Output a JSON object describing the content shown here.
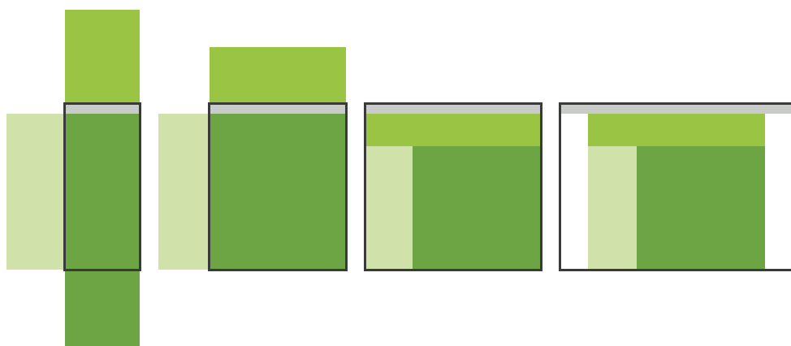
{
  "colors": {
    "light_green": "#d0e1aa",
    "lime_green": "#9ac444",
    "dark_green": "#6da544",
    "frame_border": "#3a3a3a",
    "title_bar": "#c9cbc8",
    "background": "#ffffff"
  },
  "panels": [
    {
      "id": "panel-1",
      "label": ""
    },
    {
      "id": "panel-2",
      "label": ""
    },
    {
      "id": "panel-3",
      "label": ""
    },
    {
      "id": "panel-4",
      "label": ""
    }
  ]
}
